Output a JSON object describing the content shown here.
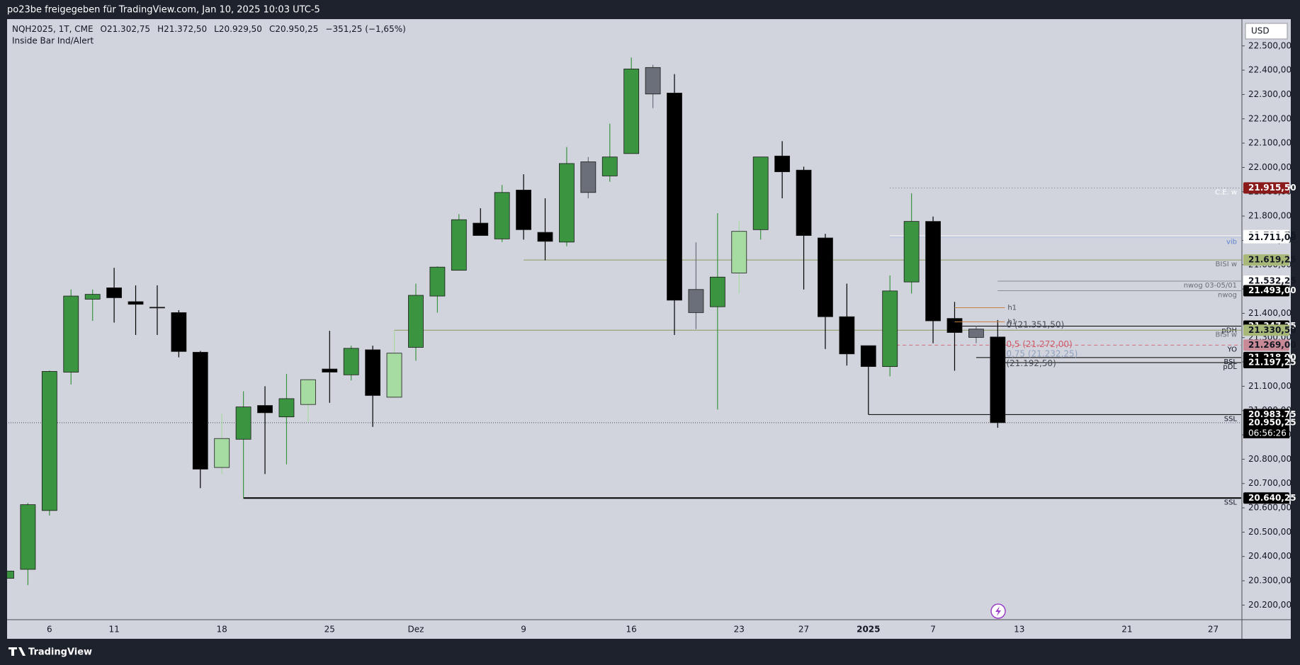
{
  "header": {
    "caption": "po23be freigegeben für TradingView.com, Jan 10, 2025 10:03 UTC-5",
    "symbol": "NQH2025, 1T, CME",
    "open": "O21.302,75",
    "high": "H21.372,50",
    "low": "L20.929,50",
    "close": "C20.950,25",
    "change": "−351,25 (−1,65%)",
    "indicator": "Inside Bar Ind/Alert",
    "currency": "USD",
    "brand": "TradingView"
  },
  "chart_data": {
    "type": "candlestick",
    "categories": [
      null,
      null,
      "6",
      null,
      null,
      "11",
      null,
      null,
      null,
      null,
      "18",
      null,
      null,
      null,
      null,
      "25",
      null,
      null,
      null,
      "Dez",
      null,
      null,
      null,
      null,
      "9",
      null,
      null,
      null,
      null,
      "16",
      null,
      null,
      null,
      null,
      "23",
      null,
      null,
      "27",
      null,
      null,
      "2025",
      null,
      null,
      "7",
      null,
      null,
      null,
      "13",
      null,
      null,
      null,
      null,
      "21",
      null,
      null,
      null,
      "27",
      null
    ],
    "open": [
      20310,
      20347,
      20589,
      21158,
      21458,
      21505,
      21448,
      21425,
      21403,
      21240,
      20766,
      20882,
      21021,
      20974,
      21025,
      21171,
      21147,
      21250,
      21055,
      21260,
      21471,
      21577,
      21771,
      21706,
      21907,
      21733,
      21693,
      22023,
      21965,
      22057,
      22411,
      22306,
      21498,
      21427,
      21566,
      21744,
      22047,
      21989,
      21710,
      21386,
      21267,
      21181,
      21529,
      21778,
      21379,
      21335,
      21302.75,
      null,
      null,
      null,
      null,
      null,
      null,
      null,
      null,
      null,
      null,
      null
    ],
    "high": [
      20480,
      20620,
      21165,
      21498,
      21498,
      21587,
      21515,
      21515,
      21413,
      21245,
      20987,
      21079,
      21100,
      21151,
      21130,
      21328,
      21267,
      21267,
      21328,
      21522,
      21593,
      21808,
      21832,
      21928,
      21972,
      21873,
      22084,
      22043,
      22180,
      22452,
      22422,
      22384,
      21692,
      21812,
      21778,
      22043,
      22108,
      22003,
      21727,
      21522,
      21267,
      21556,
      21894,
      21798,
      21447,
      21347.25,
      21372.5,
      null,
      null,
      null,
      null,
      null,
      null,
      null,
      null,
      null,
      null,
      null
    ],
    "low": [
      20250,
      20282,
      20568,
      21107,
      21369,
      21362,
      21311,
      21311,
      21219,
      20681,
      20739,
      20640.25,
      20739,
      20779,
      20953,
      21032,
      21124,
      20933,
      21052,
      21205,
      21403,
      21577,
      21720,
      21693,
      21703,
      21618,
      21676,
      21873,
      21941,
      22057,
      22244,
      21311,
      21335,
      21004,
      21481,
      21703,
      21873,
      21498,
      21253,
      21185,
      20983.75,
      21141,
      21481,
      21277,
      21164,
      21277,
      20929.5,
      null,
      null,
      null,
      null,
      null,
      null,
      null,
      null,
      null,
      null,
      null
    ],
    "close": [
      20340,
      20613,
      21161,
      21471,
      21478,
      21464,
      21437,
      21423,
      21243,
      20759,
      20885,
      21015,
      20991,
      21049,
      21127,
      21158,
      21256,
      21062,
      21236,
      21474,
      21590,
      21785,
      21720,
      21897,
      21744,
      21696,
      22016,
      21897,
      22043,
      22405,
      22302,
      21454,
      21403,
      21549,
      21737,
      22043,
      21982,
      21720,
      21386,
      21233,
      21181,
      21492,
      21778,
      21369,
      21321,
      21301,
      20950.25,
      null,
      null,
      null,
      null,
      null,
      null,
      null,
      null,
      null,
      null,
      null
    ],
    "colors": [
      "#3a9440",
      "#3a9440",
      "#3a9440",
      "#3a9440",
      "#3a9440",
      "#000000",
      "#000000",
      "#000000",
      "#000000",
      "#000000",
      "#a6dba2",
      "#3a9440",
      "#000000",
      "#3a9440",
      "#a6dba2",
      "#000000",
      "#3a9440",
      "#000000",
      "#a6dba2",
      "#3a9440",
      "#3a9440",
      "#3a9440",
      "#000000",
      "#3a9440",
      "#000000",
      "#000000",
      "#3a9440",
      "#6b6f7a",
      "#3a9440",
      "#3a9440",
      "#6b6f7a",
      "#000000",
      "#6b6f7a",
      "#3a9440",
      "#a6dba2",
      "#3a9440",
      "#000000",
      "#000000",
      "#000000",
      "#000000",
      "#000000",
      "#3a9440",
      "#3a9440",
      "#000000",
      "#000000",
      "#6b6f7a",
      "#000000",
      null,
      null,
      null,
      null,
      null,
      null,
      null,
      null,
      null,
      null,
      null
    ],
    "ylim": [
      20140,
      22610
    ],
    "yticks": [
      {
        "value": 20200,
        "label": "20.200,00"
      },
      {
        "value": 20300,
        "label": "20.300,00"
      },
      {
        "value": 20400,
        "label": "20.400,00"
      },
      {
        "value": 20500,
        "label": "20.500,00"
      },
      {
        "value": 20600,
        "label": "20.600,00"
      },
      {
        "value": 20700,
        "label": "20.700,00"
      },
      {
        "value": 20800,
        "label": "20.800,00"
      },
      {
        "value": 20900,
        "label": "20.900,00"
      },
      {
        "value": 21000,
        "label": "21.000,00"
      },
      {
        "value": 21100,
        "label": "21.100,00"
      },
      {
        "value": 21200,
        "label": "21.200,00"
      },
      {
        "value": 21300,
        "label": "21.300,00"
      },
      {
        "value": 21400,
        "label": "21.400,00"
      },
      {
        "value": 21500,
        "label": "21.500,00"
      },
      {
        "value": 21600,
        "label": "21.600,00"
      },
      {
        "value": 21700,
        "label": "21.700,00"
      },
      {
        "value": 21800,
        "label": "21.800,00"
      },
      {
        "value": 21900,
        "label": "21.900,00"
      },
      {
        "value": 22000,
        "label": "22.000,00"
      },
      {
        "value": 22100,
        "label": "22.100,00"
      },
      {
        "value": 22200,
        "label": "22.200,00"
      },
      {
        "value": 22300,
        "label": "22.300,00"
      },
      {
        "value": 22400,
        "label": "22.400,00"
      },
      {
        "value": 22500,
        "label": "22.500,00"
      }
    ],
    "grid": false,
    "levels": [
      {
        "value": 21915.5,
        "tag": "21.915,50",
        "text": "C.E. w",
        "line": "#6a6d75",
        "text_color": "#ffffff",
        "bg": "#8b1a1a",
        "fg": "#ffffff",
        "from": 41,
        "dash": "1 3"
      },
      {
        "value": 21719.75,
        "tag": "21.719,75",
        "line": "#eef0f5",
        "bg": "#ffffff",
        "fg": "#131722",
        "from": 41
      },
      {
        "value": 21711,
        "tag": "21.711,00",
        "text": "vib",
        "line": "#b9c6e6",
        "text_color": "#5d7fd6",
        "bg": "#ffffff",
        "fg": "#131722",
        "from": 41
      },
      {
        "value": 21619.25,
        "tag": "21.619,25",
        "text": "BISI w",
        "line": "#8a9a5b",
        "text_color": "#6a6d75",
        "bg": "#a8b878",
        "fg": "#131722",
        "from": 24
      },
      {
        "value": 21532.25,
        "tag": "21.532,25",
        "text": "nwog 03-05/01",
        "line": "#8a8d96",
        "text_color": "#6a6d75",
        "bg": "#ffffff",
        "fg": "#131722",
        "from": 46
      },
      {
        "value": 21493,
        "tag": "21.493,00",
        "text": "nwog",
        "line": "#8a8d96",
        "text_color": "#6a6d75",
        "bg": "#000000",
        "fg": "#ffffff",
        "from": 46
      },
      {
        "value": 21347.25,
        "tag": "21.347,25",
        "text": "pDH",
        "line": "#000000",
        "text_color": "#131722",
        "bg": "#000000",
        "fg": "#ffffff",
        "from": 44
      },
      {
        "value": 21330.5,
        "tag": "21.330,50",
        "text": "BISI w",
        "line": "#8a9a5b",
        "text_color": "#6a6d75",
        "bg": "#a8b878",
        "fg": "#131722",
        "from": 18
      },
      {
        "value": 21269,
        "tag": "21.269,00",
        "text": "YO",
        "line": "#d0707f",
        "text_color": "#131722",
        "bg": "#c98a98",
        "fg": "#131722",
        "from": 41,
        "dash": "5 4"
      },
      {
        "value": 21218,
        "tag": "21.218,00",
        "text": "BSL",
        "line": "#000000",
        "text_color": "#131722",
        "bg": "#000000",
        "fg": "#ffffff",
        "from": 45
      },
      {
        "value": 21197.25,
        "tag": "21.197,25",
        "text": "pDL",
        "line": "#000000",
        "text_color": "#131722",
        "bg": "#000000",
        "fg": "#ffffff",
        "from": 46
      },
      {
        "value": 20983.75,
        "tag": "20.983,75",
        "text": "SSL",
        "line": "#000000",
        "text_color": "#131722",
        "bg": "#000000",
        "fg": "#ffffff",
        "from": 40
      },
      {
        "value": 20950.25,
        "tag": "20.950,25",
        "countdown": "06:56:26",
        "line": "#4a4d55",
        "bg": "#000000",
        "fg": "#ffffff",
        "from": 0,
        "dash": "1 2"
      },
      {
        "value": 20640.25,
        "tag": "20.640,25",
        "text": "SSL",
        "line": "#000000",
        "text_color": "#131722",
        "bg": "#000000",
        "fg": "#ffffff",
        "from": 11,
        "width": 2
      }
    ],
    "short_levels": [
      {
        "value": 21423,
        "text": "h1",
        "color": "#c8803e",
        "from": 44,
        "to": 46
      },
      {
        "value": 21365,
        "text": "h1",
        "color": "#c8803e",
        "from": 44,
        "to": 46
      }
    ],
    "fib_labels": [
      {
        "value": 21351.5,
        "label": "0 (21.351,50)",
        "color": "#4a4d55"
      },
      {
        "value": 21272,
        "label": "0,5 (21.272,00)",
        "color": "#d05a6a"
      },
      {
        "value": 21232.25,
        "label": "0,75 (21.232,25)",
        "color": "#8fa0c0"
      },
      {
        "value": 21192.5,
        "label": "(21.192,50)",
        "color": "#4a4d55"
      }
    ]
  }
}
